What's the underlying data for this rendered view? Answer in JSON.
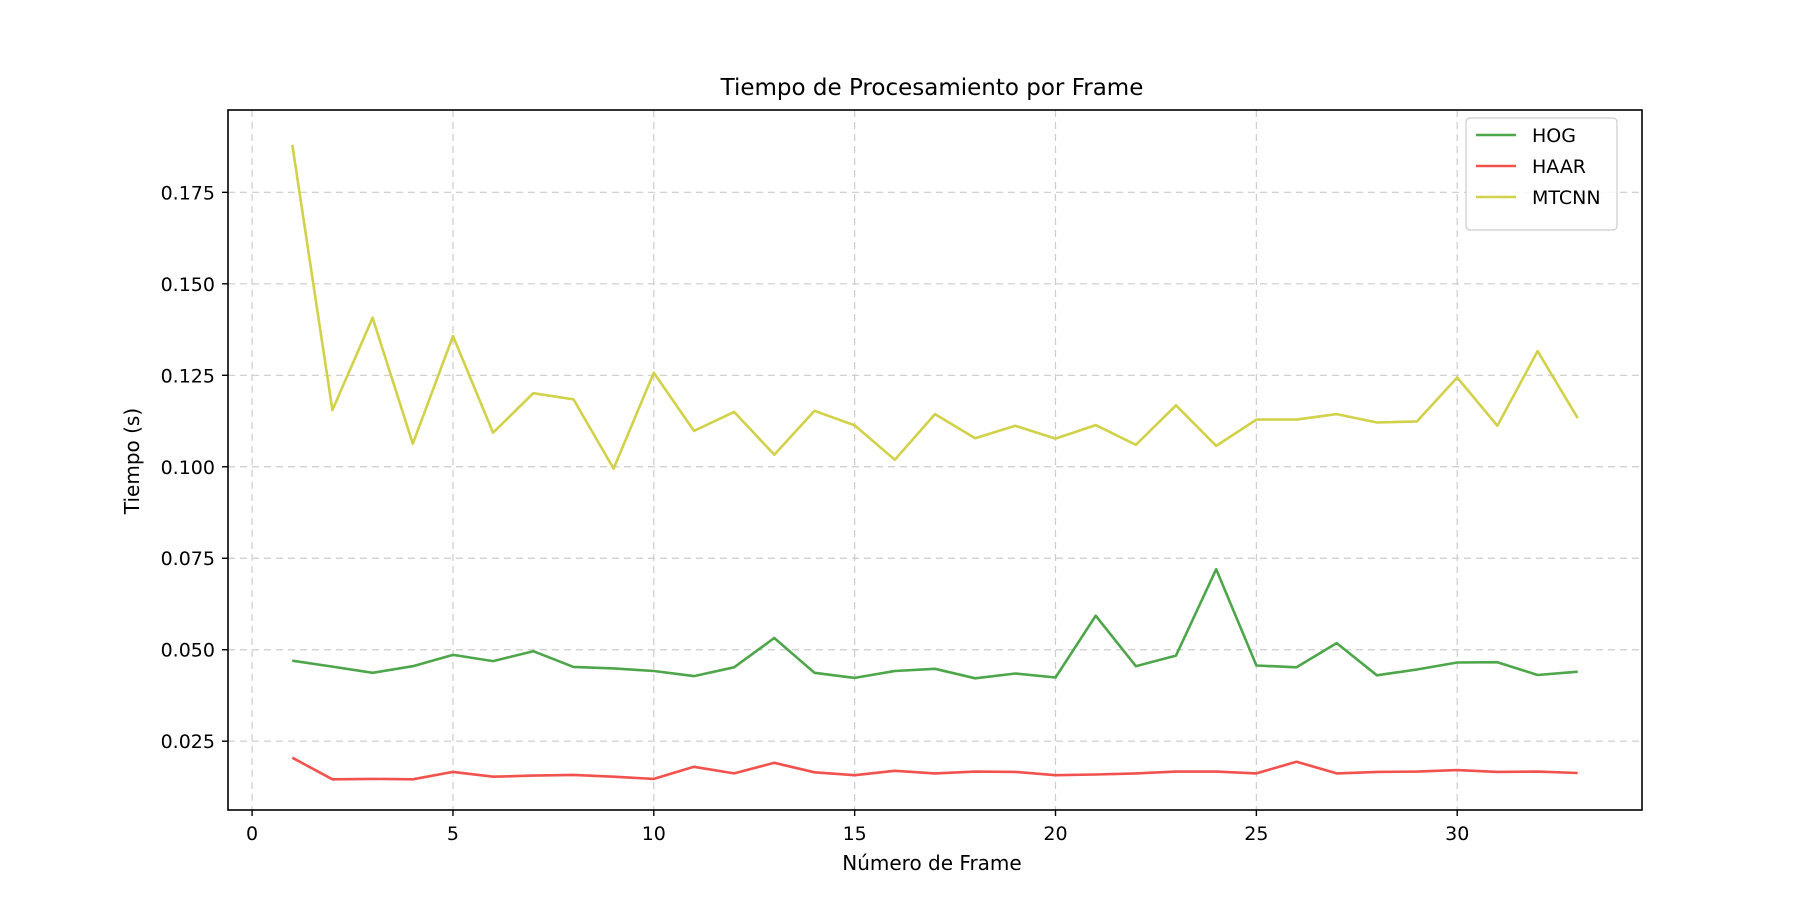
{
  "chart_data": {
    "type": "line",
    "title": "Tiempo de Procesamiento por Frame",
    "xlabel": "Número de Frame",
    "ylabel": "Tiempo (s)",
    "xlim": [
      -0.6,
      34.6
    ],
    "ylim": [
      0.0062,
      0.1975
    ],
    "xticks": [
      0,
      5,
      10,
      15,
      20,
      25,
      30
    ],
    "yticks": [
      0.025,
      0.05,
      0.075,
      0.1,
      0.125,
      0.15,
      0.175
    ],
    "ytick_labels": [
      "0.025",
      "0.050",
      "0.075",
      "0.100",
      "0.125",
      "0.150",
      "0.175"
    ],
    "grid": true,
    "legend_position": "top-right",
    "x": [
      1,
      2,
      3,
      4,
      5,
      6,
      7,
      8,
      9,
      10,
      11,
      12,
      13,
      14,
      15,
      16,
      17,
      18,
      19,
      20,
      21,
      22,
      23,
      24,
      25,
      26,
      27,
      28,
      29,
      30,
      31,
      32,
      33
    ],
    "series": [
      {
        "name": "HOG",
        "color": "#4ea64a",
        "values": [
          0.047,
          0.0454,
          0.0437,
          0.0455,
          0.0486,
          0.0469,
          0.0496,
          0.0453,
          0.0449,
          0.0442,
          0.0428,
          0.0452,
          0.0532,
          0.0437,
          0.0423,
          0.0442,
          0.0448,
          0.0422,
          0.0435,
          0.0424,
          0.0593,
          0.0455,
          0.0484,
          0.072,
          0.0457,
          0.0452,
          0.0518,
          0.043,
          0.0446,
          0.0465,
          0.0466,
          0.0431,
          0.044
        ]
      },
      {
        "name": "HAAR",
        "color": "#f2524d",
        "values": [
          0.0205,
          0.0146,
          0.0147,
          0.0146,
          0.0166,
          0.0153,
          0.0156,
          0.0158,
          0.0153,
          0.0147,
          0.018,
          0.0162,
          0.0191,
          0.0165,
          0.0157,
          0.0169,
          0.0162,
          0.0167,
          0.0166,
          0.0157,
          0.0159,
          0.0162,
          0.0167,
          0.0167,
          0.0162,
          0.0194,
          0.0162,
          0.0166,
          0.0167,
          0.0171,
          0.0166,
          0.0167,
          0.0163
        ]
      },
      {
        "name": "MTCNN",
        "color": "#d1d14a",
        "values": [
          0.188,
          0.1155,
          0.1407,
          0.1063,
          0.1357,
          0.1093,
          0.1201,
          0.1184,
          0.0995,
          0.1257,
          0.1098,
          0.115,
          0.1033,
          0.1153,
          0.1113,
          0.1019,
          0.1144,
          0.1078,
          0.1112,
          0.1077,
          0.1114,
          0.106,
          0.1168,
          0.1057,
          0.1129,
          0.1129,
          0.1144,
          0.1121,
          0.1124,
          0.1244,
          0.1112,
          0.1316,
          0.1133
        ]
      }
    ]
  }
}
